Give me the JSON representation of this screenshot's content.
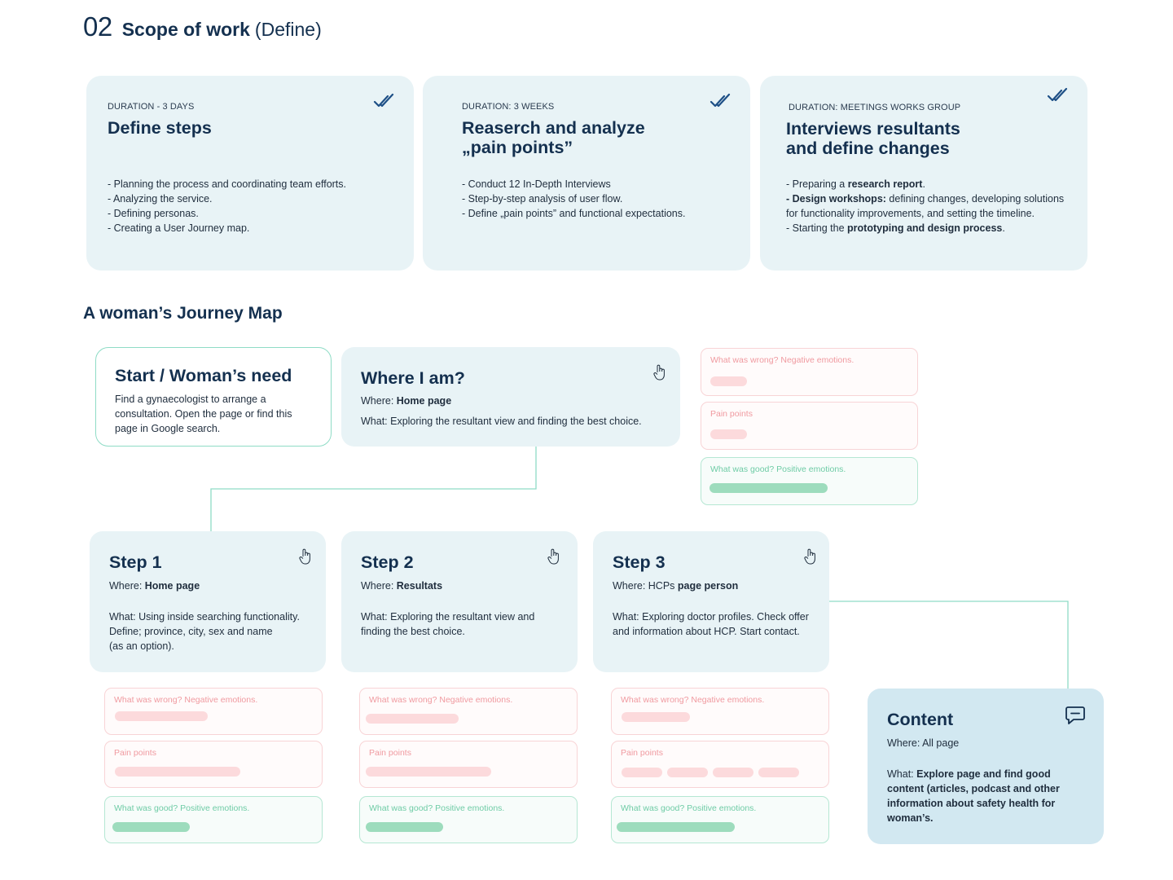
{
  "header": {
    "number": "02",
    "title": "Scope of work",
    "subtitle": "(Define)"
  },
  "phases": [
    {
      "duration": "DURATION - 3 DAYS",
      "title": "Define steps",
      "bullets": [
        "- Planning the process and coordinating team efforts.",
        "- Analyzing the service.",
        "- Defining personas.",
        "- Creating a User Journey map."
      ]
    },
    {
      "duration": "DURATION: 3 WEEKS",
      "title": "Reaserch and analyze\n„pain points”",
      "bullets": [
        "- Conduct 12 In-Depth Interviews",
        "- Step-by-step analysis of user flow.",
        "- Define „pain points” and functional expectations."
      ]
    },
    {
      "duration": "DURATION: MEETINGS WORKS GROUP",
      "title": "Interviews resultants\nand define changes",
      "b1_pre": "- Preparing a ",
      "b1_bold": "research report",
      "b1_post": ".",
      "b2_bold": "- Design workshops:",
      "b2_post": " defining changes, developing solutions for functionality improvements, and setting the timeline.",
      "b3_pre": "- Starting the ",
      "b3_bold": "prototyping and design process",
      "b3_post": "."
    }
  ],
  "journey": {
    "title": "A woman’s Journey Map",
    "start": {
      "title": "Start / Woman’s need",
      "text": "Find a gynaecologist to arrange a consultation. Open the page or find this page in Google search."
    },
    "where": {
      "title": "Where I am?",
      "where_label": "Where: ",
      "where_value": "Home page",
      "what": "What: Exploring the resultant view and finding the best choice."
    },
    "steps": [
      {
        "title": "Step 1",
        "where_label": "Where: ",
        "where_value": "Home page",
        "what": [
          "What: Using inside searching functionality.",
          "Define; province, city, sex and name",
          "(as an option)."
        ]
      },
      {
        "title": "Step 2",
        "where_label": "Where: ",
        "where_value": "Resultats",
        "what": [
          "What: Exploring the resultant view and",
          "finding the best choice."
        ]
      },
      {
        "title": "Step 3",
        "where_label": "Where: HCPs ",
        "where_value": "page person",
        "what": [
          "What: Exploring doctor profiles. Check offer",
          "and information about HCP. Start contact."
        ]
      }
    ],
    "content": {
      "title": "Content",
      "where": "Where: All page",
      "what_label": "What: ",
      "what_bold": "Explore page and find good content (articles, podcast and other information about safety health for woman’s."
    },
    "labels": {
      "negative": "What was wrong? Negative emotions.",
      "pain": "Pain points",
      "positive": "What was good? Positive emotions."
    }
  },
  "colors": {
    "navy": "#14304f",
    "card_bg": "#e8f3f6",
    "content_bg": "#d2e8f1",
    "connector": "#8fdcc6",
    "negative": "#f09aa0",
    "positive": "#6fcca6"
  },
  "icons": [
    "double-check-icon",
    "pointer-hand-icon",
    "chat-icon"
  ]
}
